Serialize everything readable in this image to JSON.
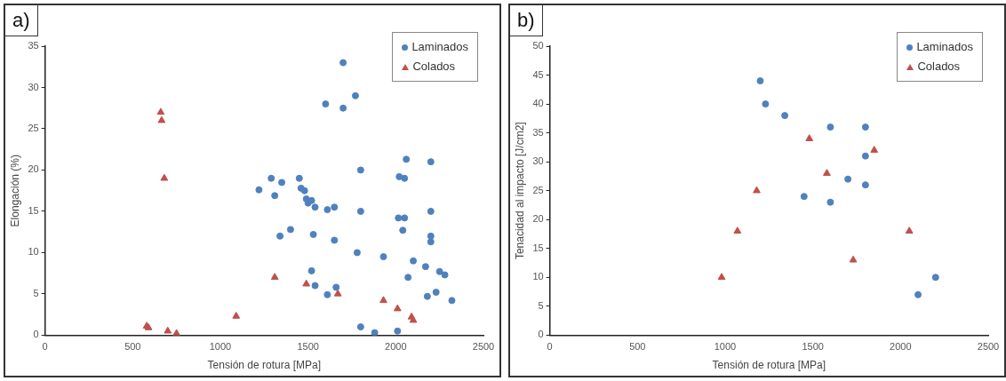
{
  "chart_data": [
    {
      "type": "scatter",
      "annotations": [
        "a)"
      ],
      "xlabel": "Tensión de rotura [MPa]",
      "ylabel": "Elongación (%)",
      "xlim": [
        0,
        2500
      ],
      "xticks": [
        0,
        500,
        1000,
        1500,
        2000,
        2500
      ],
      "ylim": [
        0,
        35
      ],
      "yticks": [
        0,
        5,
        10,
        15,
        20,
        25,
        30,
        35
      ],
      "grid": false,
      "legend": "top right",
      "series": [
        {
          "name": "Laminados",
          "color": "#4f81bd",
          "marker": "circle",
          "x": [
            1700,
            1600,
            1700,
            1770,
            2060,
            2200,
            1800,
            2020,
            2050,
            1220,
            1290,
            1310,
            1350,
            1450,
            1460,
            1480,
            1490,
            1500,
            1520,
            1540,
            1610,
            1650,
            1800,
            2200,
            2015,
            2050,
            1340,
            1400,
            1530,
            1650,
            2040,
            2200,
            2200,
            1780,
            1930,
            2100,
            2170,
            2250,
            2280,
            2070,
            1520,
            1540,
            1660,
            1610,
            2180,
            2230,
            2320,
            1800,
            1880,
            2010
          ],
          "values": [
            33,
            28,
            27.5,
            29,
            21.3,
            21,
            20,
            19.2,
            19,
            17.6,
            19,
            16.9,
            18.5,
            19,
            17.8,
            17.5,
            16.5,
            16,
            16.3,
            15.5,
            15.2,
            15.5,
            15,
            15,
            14.2,
            14.2,
            12,
            12.8,
            12.2,
            11.5,
            12.7,
            12,
            11.3,
            10,
            9.5,
            9,
            8.3,
            7.7,
            7.3,
            7,
            7.8,
            6,
            5.8,
            4.9,
            4.7,
            5.2,
            4.2,
            1,
            0.3,
            0.5
          ]
        },
        {
          "name": "Colados",
          "color": "#c0504d",
          "marker": "triangle",
          "x": [
            660,
            665,
            680,
            580,
            590,
            700,
            750,
            1090,
            1310,
            1490,
            1670,
            1930,
            2010,
            2090,
            2100
          ],
          "values": [
            27,
            26,
            19,
            1.1,
            0.9,
            0.5,
            0.2,
            2.3,
            7,
            6.2,
            5,
            4.2,
            3.2,
            2.2,
            1.8
          ]
        }
      ]
    },
    {
      "type": "scatter",
      "annotations": [
        "b)"
      ],
      "xlabel": "Tensión de rotura [MPa]",
      "ylabel": "Tenacidad al impacto [J/cm2]",
      "xlim": [
        0,
        2500
      ],
      "xticks": [
        0,
        500,
        1000,
        1500,
        2000,
        2500
      ],
      "ylim": [
        0,
        50
      ],
      "yticks": [
        0,
        5,
        10,
        15,
        20,
        25,
        30,
        35,
        40,
        45,
        50
      ],
      "grid": false,
      "legend": "top right",
      "series": [
        {
          "name": "Laminados",
          "color": "#4f81bd",
          "marker": "circle",
          "x": [
            1200,
            1230,
            1340,
            1600,
            1800,
            1800,
            1700,
            1800,
            1450,
            1600,
            2200,
            2100
          ],
          "values": [
            44,
            40,
            38,
            36,
            36,
            31,
            27,
            26,
            24,
            23,
            10,
            7
          ]
        },
        {
          "name": "Colados",
          "color": "#c0504d",
          "marker": "triangle",
          "x": [
            980,
            1070,
            1180,
            1480,
            1580,
            1850,
            1730,
            2050
          ],
          "values": [
            10,
            18,
            25,
            34,
            28,
            32,
            13,
            18
          ]
        }
      ]
    }
  ]
}
